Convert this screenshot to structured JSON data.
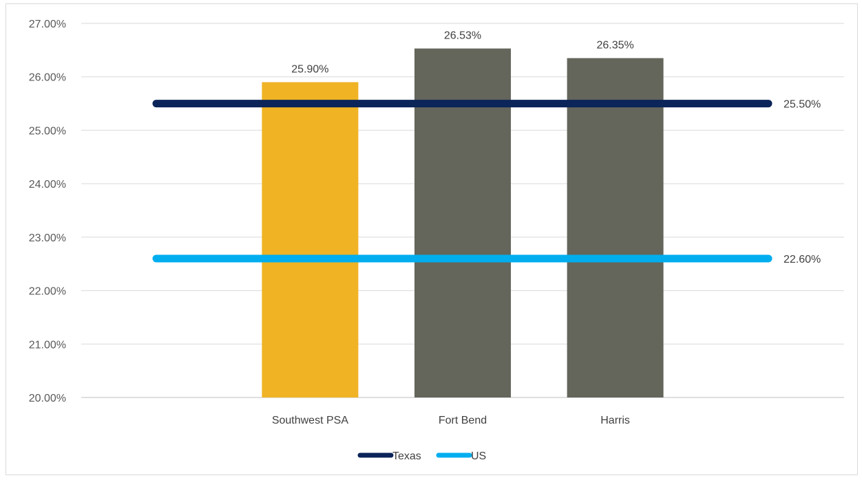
{
  "chart_data": {
    "type": "bar",
    "categories": [
      "Southwest PSA",
      "Fort Bend",
      "Harris"
    ],
    "values": [
      25.9,
      26.53,
      26.35
    ],
    "value_labels": [
      "25.90%",
      "26.53%",
      "26.35%"
    ],
    "bar_colors": [
      "#EFB324",
      "#64655B",
      "#64655B"
    ],
    "reference_lines": [
      {
        "name": "Texas",
        "value": 25.5,
        "label": "25.50%",
        "color": "#0B2459"
      },
      {
        "name": "US",
        "value": 22.6,
        "label": "22.60%",
        "color": "#00AEEF"
      }
    ],
    "ylim": [
      20,
      27
    ],
    "yticks": [
      "20.00%",
      "21.00%",
      "22.00%",
      "23.00%",
      "24.00%",
      "25.00%",
      "26.00%",
      "27.00%"
    ],
    "gridlines": true,
    "legend_position": "bottom",
    "title": "",
    "xlabel": "",
    "ylabel": ""
  }
}
